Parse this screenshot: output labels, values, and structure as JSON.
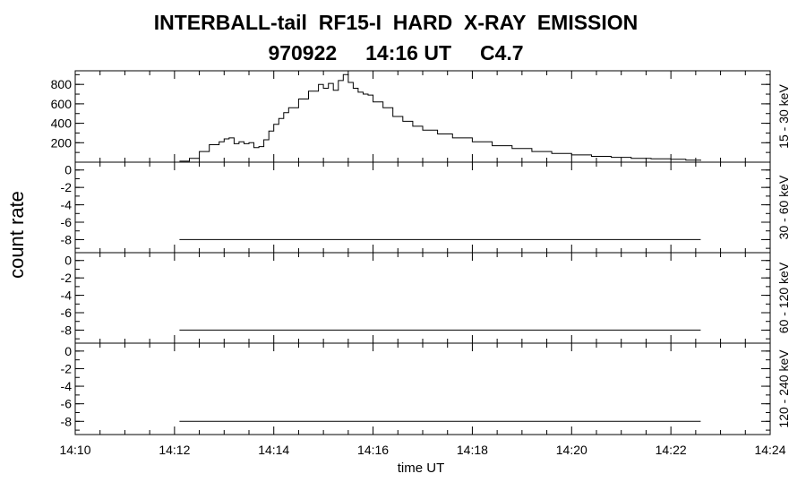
{
  "header": {
    "title": "INTERBALL-tail  RF15-I  HARD  X-RAY  EMISSION",
    "subtitle": "970922     14:16 UT     C4.7"
  },
  "chart_data": {
    "type": "line",
    "xlabel": "time UT",
    "ylabel": "count rate",
    "x_range_minutes": [
      850,
      864
    ],
    "x_ticks": [
      "14:10",
      "14:12",
      "14:14",
      "14:16",
      "14:18",
      "14:20",
      "14:22",
      "14:24"
    ],
    "panels": [
      {
        "band": "15 - 30 keV",
        "ylim": [
          0,
          940
        ],
        "yticks": [
          "200",
          "400",
          "600",
          "800"
        ],
        "ytick_values": [
          200,
          400,
          600,
          800
        ],
        "x": [
          852.1,
          852.3,
          852.5,
          852.7,
          852.9,
          853.0,
          853.1,
          853.2,
          853.3,
          853.4,
          853.5,
          853.6,
          853.7,
          853.8,
          853.9,
          854.0,
          854.1,
          854.2,
          854.3,
          854.5,
          854.7,
          854.9,
          855.0,
          855.1,
          855.2,
          855.3,
          855.4,
          855.5,
          855.6,
          855.7,
          855.8,
          855.9,
          856.0,
          856.2,
          856.4,
          856.6,
          856.8,
          857.0,
          857.3,
          857.6,
          858.0,
          858.4,
          858.8,
          859.2,
          859.6,
          860.0,
          860.4,
          860.8,
          861.2,
          861.6,
          862.0,
          862.3,
          862.6
        ],
        "series": [
          {
            "values": [
              10,
              40,
              110,
              180,
              210,
              240,
              250,
              190,
              210,
              190,
              200,
              150,
              160,
              230,
              320,
              390,
              450,
              510,
              560,
              650,
              730,
              800,
              760,
              810,
              740,
              840,
              900,
              820,
              760,
              720,
              700,
              690,
              620,
              560,
              470,
              420,
              370,
              330,
              290,
              250,
              210,
              170,
              140,
              110,
              90,
              75,
              60,
              50,
              40,
              35,
              30,
              20,
              15
            ]
          }
        ]
      },
      {
        "band": "30 - 60 keV",
        "ylim": [
          -9.5,
          0.9
        ],
        "yticks": [
          "-8",
          "-6",
          "-4",
          "-2",
          "0"
        ],
        "ytick_values": [
          -8,
          -6,
          -4,
          -2,
          0
        ],
        "x": [
          852.1,
          862.6
        ],
        "series": [
          {
            "values": [
              -8,
              -8
            ]
          }
        ]
      },
      {
        "band": "60 - 120 keV",
        "ylim": [
          -9.5,
          0.9
        ],
        "yticks": [
          "-8",
          "-6",
          "-4",
          "-2",
          "0"
        ],
        "ytick_values": [
          -8,
          -6,
          -4,
          -2,
          0
        ],
        "x": [
          852.1,
          862.6
        ],
        "series": [
          {
            "values": [
              -8,
              -8
            ]
          }
        ]
      },
      {
        "band": "120 - 240 keV",
        "ylim": [
          -9.5,
          0.9
        ],
        "yticks": [
          "-8",
          "-6",
          "-4",
          "-2",
          "0"
        ],
        "ytick_values": [
          -8,
          -6,
          -4,
          -2,
          0
        ],
        "x": [
          852.1,
          862.6
        ],
        "series": [
          {
            "values": [
              -8,
              -8
            ]
          }
        ]
      }
    ]
  }
}
